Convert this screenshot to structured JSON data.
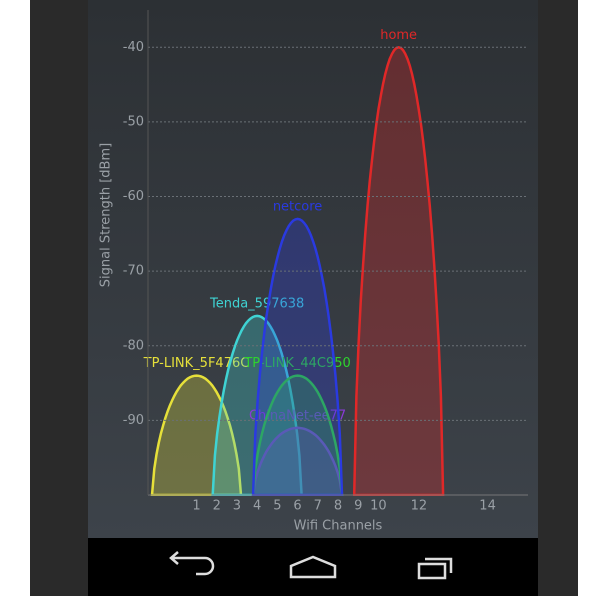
{
  "chart_data": {
    "type": "wifi-arcs",
    "ylabel": "Signal Strength [dBm]",
    "xlabel": "Wifi Channels",
    "ylim": [
      -100,
      -35
    ],
    "yticks": [
      -40,
      -50,
      -60,
      -70,
      -80,
      -90
    ],
    "xlim": [
      2400,
      2494
    ],
    "xticks": [
      {
        "value": 2412,
        "label": "1"
      },
      {
        "value": 2417,
        "label": "2"
      },
      {
        "value": 2422,
        "label": "3"
      },
      {
        "value": 2427,
        "label": "4"
      },
      {
        "value": 2432,
        "label": "5"
      },
      {
        "value": 2437,
        "label": "6"
      },
      {
        "value": 2442,
        "label": "7"
      },
      {
        "value": 2447,
        "label": "8"
      },
      {
        "value": 2452,
        "label": "9"
      },
      {
        "value": 2457,
        "label": "10"
      },
      {
        "value": 2467,
        "label": "12"
      },
      {
        "value": 2484,
        "label": "14"
      }
    ],
    "grid": true,
    "series": [
      {
        "name": "TP-LINK_5F476C",
        "color": "#e6e03a",
        "x": [
          2412
        ],
        "values": [
          -84
        ]
      },
      {
        "name": "Tenda_597638",
        "color": "#3fd3d3",
        "x": [
          2427
        ],
        "values": [
          -76
        ]
      },
      {
        "name": "ChinaNet-ee77",
        "color": "#8a3ad8",
        "x": [
          2437
        ],
        "values": [
          -91
        ]
      },
      {
        "name": "TP-LINK_44C950",
        "color": "#2ed42e",
        "x": [
          2437
        ],
        "values": [
          -84
        ]
      },
      {
        "name": "netcore",
        "color": "#2a3ae0",
        "x": [
          2437
        ],
        "values": [
          -63
        ]
      },
      {
        "name": "home",
        "color": "#e02828",
        "x": [
          2462
        ],
        "values": [
          -40
        ]
      }
    ]
  }
}
